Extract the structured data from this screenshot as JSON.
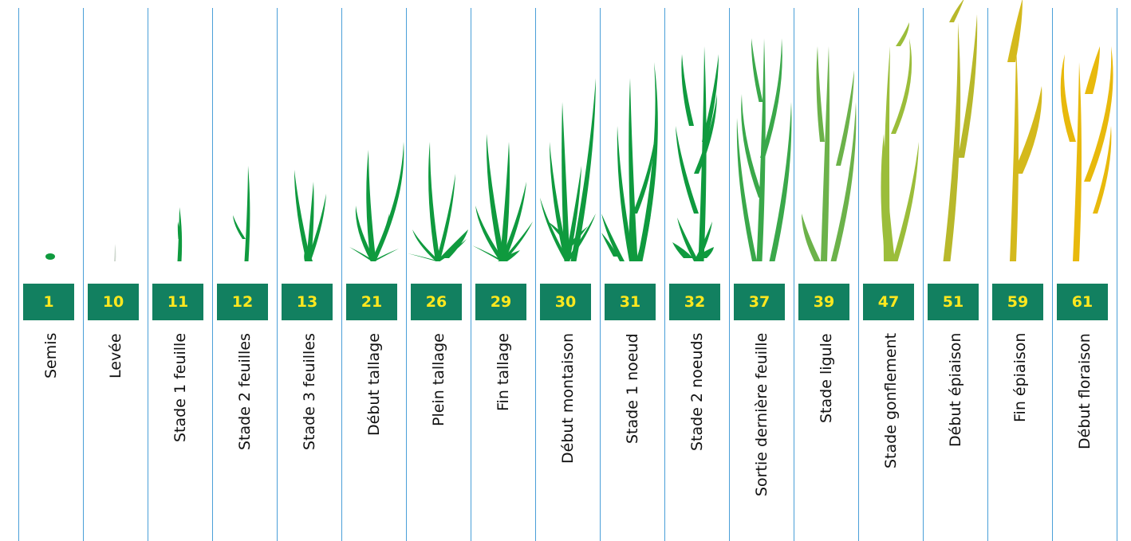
{
  "stages": [
    {
      "code": "1",
      "label": "Semis",
      "color": "#0f9a3e"
    },
    {
      "code": "10",
      "label": "Levée",
      "color": "#cfd8cf"
    },
    {
      "code": "11",
      "label": "Stade 1 feuille",
      "color": "#0f9a3e"
    },
    {
      "code": "12",
      "label": "Stade 2 feuilles",
      "color": "#0f9a3e"
    },
    {
      "code": "13",
      "label": "Stade 3 feuilles",
      "color": "#0f9a3e"
    },
    {
      "code": "21",
      "label": "Début tallage",
      "color": "#0f9a3e"
    },
    {
      "code": "26",
      "label": "Plein tallage",
      "color": "#0f9a3e"
    },
    {
      "code": "29",
      "label": "Fin tallage",
      "color": "#0f9a3e"
    },
    {
      "code": "30",
      "label": "Début montaison",
      "color": "#0f9a3e"
    },
    {
      "code": "31",
      "label": "Stade 1  noeud",
      "color": "#0f9a3e"
    },
    {
      "code": "32",
      "label": "Stade 2 noeuds",
      "color": "#0f9a3e"
    },
    {
      "code": "37",
      "label": "Sortie  dernière feuille",
      "color": "#3aa84a"
    },
    {
      "code": "39",
      "label": "Stade ligule",
      "color": "#6cb24a"
    },
    {
      "code": "47",
      "label": "Stade gonflement",
      "color": "#9bbd3a"
    },
    {
      "code": "51",
      "label": "Début épiaison",
      "color": "#b8b82a"
    },
    {
      "code": "59",
      "label": "Fin épiaison",
      "color": "#d4b91c"
    },
    {
      "code": "61",
      "label": "Début floraison",
      "color": "#e8b90c"
    }
  ],
  "box_color": "#128060",
  "code_color": "#ffe81e",
  "divider_color": "#4a9fd8"
}
